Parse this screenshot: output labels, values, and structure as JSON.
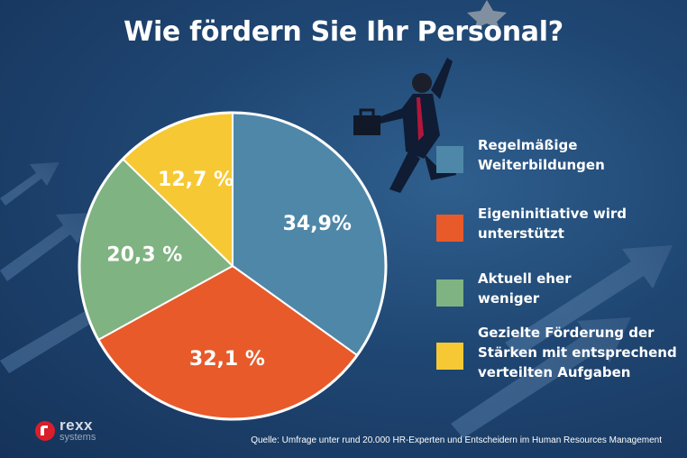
{
  "title": "Wie fördern Sie Ihr Personal?",
  "chart_data": {
    "type": "pie",
    "title": "Wie fördern Sie Ihr Personal?",
    "slices": [
      {
        "label": "Regelmäßige Weiterbildungen",
        "value": 34.9,
        "display": "34,9%",
        "color": "#4f87a8"
      },
      {
        "label": "Eigeninitiative wird unterstützt",
        "value": 32.1,
        "display": "32,1 %",
        "color": "#e85a2a"
      },
      {
        "label": "Aktuell eher weniger",
        "value": 20.3,
        "display": "20,3 %",
        "color": "#7fb381"
      },
      {
        "label": "Gezielte Förderung der Stärken mit entsprechend verteilten Aufgaben",
        "value": 12.7,
        "display": "12,7 %",
        "color": "#f6c834"
      }
    ],
    "legend_position": "right"
  },
  "legend": [
    {
      "lines": [
        "Regelmäßige",
        "Weiterbildungen"
      ],
      "color": "#4f87a8"
    },
    {
      "lines": [
        "Eigeninitiative wird",
        "unterstützt"
      ],
      "color": "#e85a2a"
    },
    {
      "lines": [
        "Aktuell eher",
        "weniger"
      ],
      "color": "#7fb381"
    },
    {
      "lines": [
        "Gezielte Förderung der",
        "Stärken mit entsprechend",
        "verteilten Aufgaben"
      ],
      "color": "#f6c834"
    }
  ],
  "logo": {
    "name": "rexx",
    "sub": "systems"
  },
  "source": "Quelle: Umfrage unter rund 20.000 HR-Experten und Entscheidern im Human Resources Management"
}
